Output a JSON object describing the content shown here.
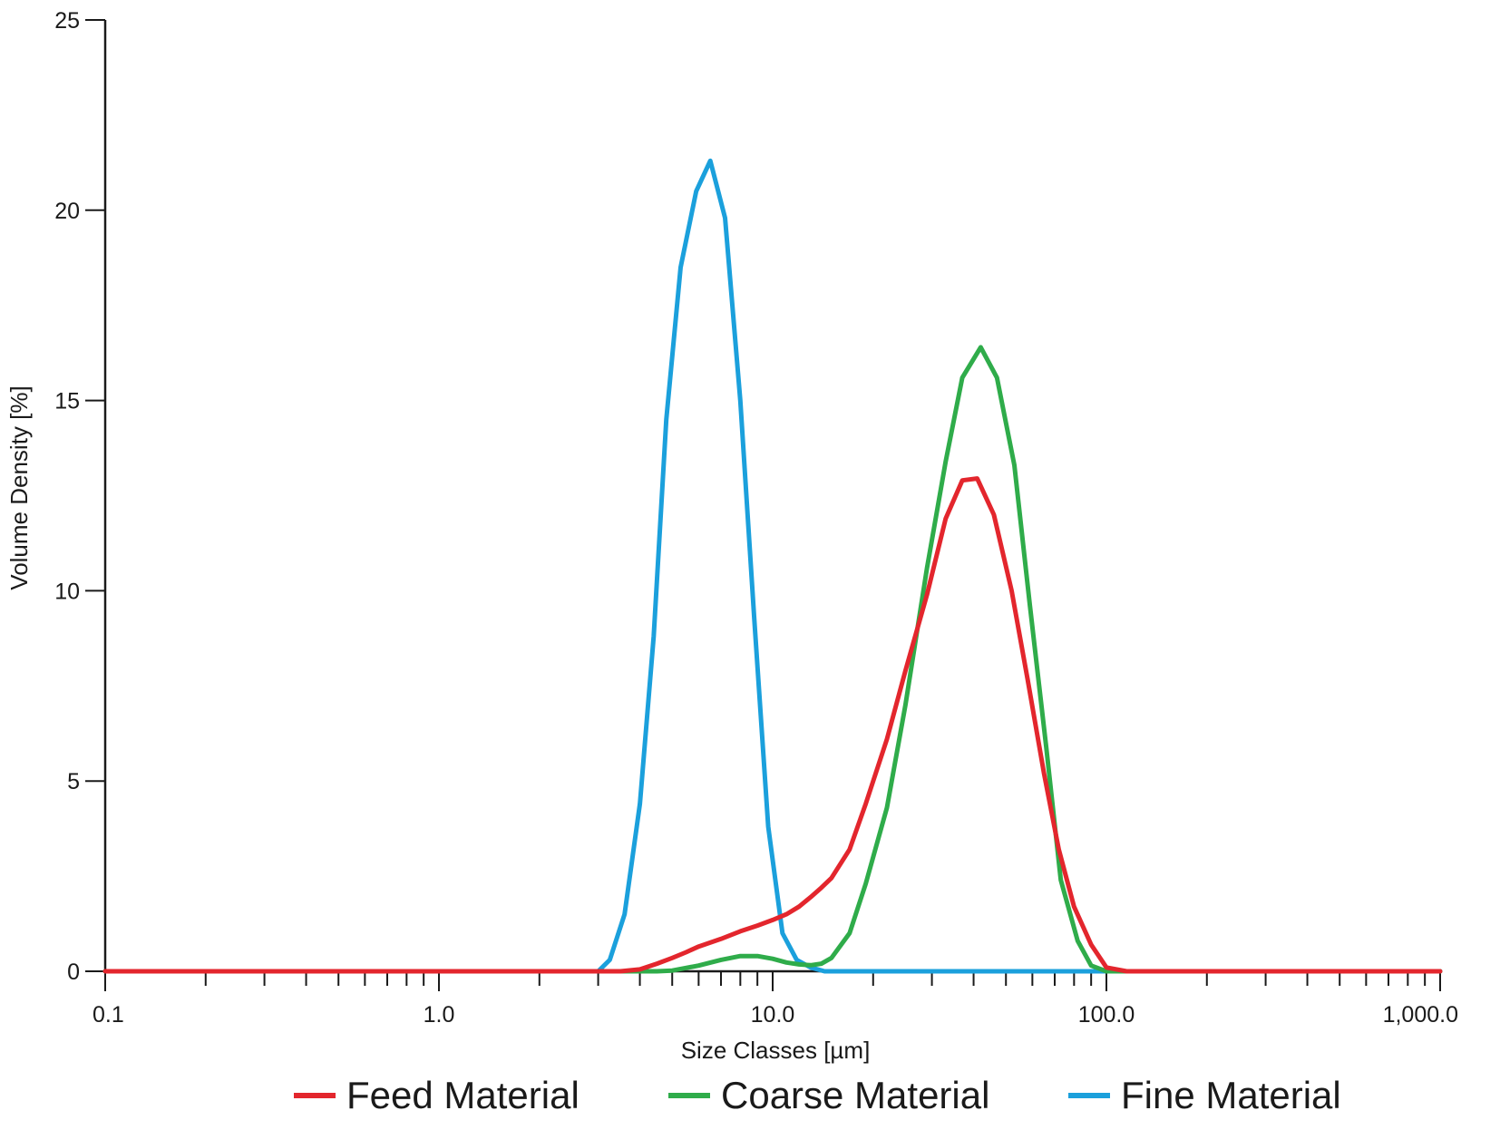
{
  "chart_data": {
    "type": "line",
    "xlabel": "Size Classes [µm]",
    "ylabel": "Volume Density [%]",
    "x_scale": "log",
    "xlim": [
      0.1,
      1000
    ],
    "ylim": [
      0,
      25
    ],
    "x_ticks": [
      0.1,
      1,
      10,
      100,
      1000
    ],
    "x_tick_labels": [
      "0.1",
      "1.0",
      "10.0",
      "100.0",
      "1,000.0"
    ],
    "y_ticks": [
      0,
      5,
      10,
      15,
      20,
      25
    ],
    "y_tick_labels": [
      "0",
      "5",
      "10",
      "15",
      "20",
      "25"
    ],
    "grid": false,
    "legend_position": "bottom",
    "series": [
      {
        "name": "Feed Material",
        "color": "#e3262d",
        "x": [
          0.1,
          3.0,
          3.5,
          4.0,
          4.5,
          5.0,
          5.5,
          6.0,
          7.0,
          8.0,
          9.0,
          10.0,
          11.0,
          12.0,
          13.0,
          14.0,
          15.0,
          17.0,
          19.0,
          22.0,
          25.0,
          29.0,
          33.0,
          37.0,
          41.0,
          46.0,
          52.0,
          58.0,
          65.0,
          72.0,
          80.0,
          90.0,
          100.0,
          115.0,
          1000.0
        ],
        "y": [
          0,
          0,
          0,
          0.05,
          0.2,
          0.35,
          0.5,
          0.65,
          0.85,
          1.05,
          1.2,
          1.35,
          1.5,
          1.7,
          1.95,
          2.2,
          2.45,
          3.2,
          4.4,
          6.1,
          7.9,
          9.9,
          11.9,
          12.9,
          12.95,
          12.0,
          10.0,
          7.7,
          5.2,
          3.2,
          1.7,
          0.7,
          0.1,
          0,
          0
        ]
      },
      {
        "name": "Coarse Material",
        "color": "#2fac4a",
        "x": [
          0.1,
          4.5,
          5.0,
          6.0,
          7.0,
          8.0,
          9.0,
          10.0,
          11.0,
          12.0,
          13.0,
          14.0,
          15.0,
          17.0,
          19.0,
          22.0,
          25.0,
          29.0,
          33.0,
          37.0,
          42.0,
          47.0,
          53.0,
          59.0,
          66.0,
          73.0,
          82.0,
          90.0,
          100.0,
          1000.0
        ],
        "y": [
          0,
          0,
          0.02,
          0.15,
          0.3,
          0.4,
          0.4,
          0.33,
          0.23,
          0.18,
          0.16,
          0.2,
          0.35,
          1.0,
          2.3,
          4.3,
          7.0,
          10.6,
          13.4,
          15.6,
          16.4,
          15.6,
          13.3,
          9.6,
          5.9,
          2.4,
          0.8,
          0.15,
          0,
          0
        ]
      },
      {
        "name": "Fine Material",
        "color": "#1ba0dc",
        "x": [
          0.1,
          3.0,
          3.25,
          3.6,
          4.0,
          4.4,
          4.8,
          5.3,
          5.9,
          6.5,
          7.2,
          8.0,
          8.8,
          9.7,
          10.7,
          11.8,
          13.0,
          14.3,
          1000.0
        ],
        "y": [
          0,
          0,
          0.3,
          1.5,
          4.4,
          8.8,
          14.5,
          18.5,
          20.5,
          21.3,
          19.8,
          15.0,
          9.3,
          3.8,
          1.0,
          0.3,
          0.1,
          0,
          0
        ]
      }
    ]
  }
}
